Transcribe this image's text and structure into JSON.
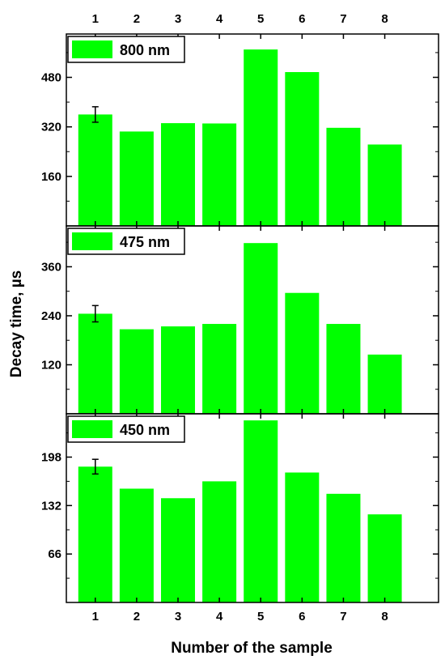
{
  "chart_data": [
    {
      "type": "bar",
      "categories": [
        "1",
        "2",
        "3",
        "4",
        "5",
        "6",
        "7",
        "8"
      ],
      "series": [
        {
          "name": "800 nm",
          "values": [
            360,
            305,
            332,
            331,
            570,
            497,
            317,
            263
          ]
        }
      ],
      "error_bars": [
        {
          "index": 0,
          "error": 25
        }
      ],
      "ylim": [
        0,
        620
      ],
      "yticks": [
        160,
        320,
        480
      ],
      "xlabel": "Number of the sample",
      "ylabel": "Decay time, µs",
      "legend": "top-left",
      "color": "#00ff00"
    },
    {
      "type": "bar",
      "categories": [
        "1",
        "2",
        "3",
        "4",
        "5",
        "6",
        "7",
        "8"
      ],
      "series": [
        {
          "name": "475 nm",
          "values": [
            245,
            207,
            214,
            220,
            418,
            296,
            220,
            145
          ]
        }
      ],
      "error_bars": [
        {
          "index": 0,
          "error": 20
        }
      ],
      "ylim": [
        0,
        460
      ],
      "yticks": [
        120,
        240,
        360
      ],
      "xlabel": "Number of the sample",
      "ylabel": "Decay time, µs",
      "legend": "top-left",
      "color": "#00ff00"
    },
    {
      "type": "bar",
      "categories": [
        "1",
        "2",
        "3",
        "4",
        "5",
        "6",
        "7",
        "8"
      ],
      "series": [
        {
          "name": "450 nm",
          "values": [
            185,
            155,
            142,
            165,
            248,
            177,
            148,
            120
          ]
        }
      ],
      "error_bars": [
        {
          "index": 0,
          "error": 10
        }
      ],
      "ylim": [
        0,
        257
      ],
      "yticks": [
        66,
        132,
        198
      ],
      "xlabel": "Number of the sample",
      "ylabel": "Decay time, µs",
      "legend": "top-left",
      "color": "#00ff00"
    }
  ],
  "labels": {
    "xlabel": "Number of the sample",
    "ylabel": "Decay time, µs"
  }
}
